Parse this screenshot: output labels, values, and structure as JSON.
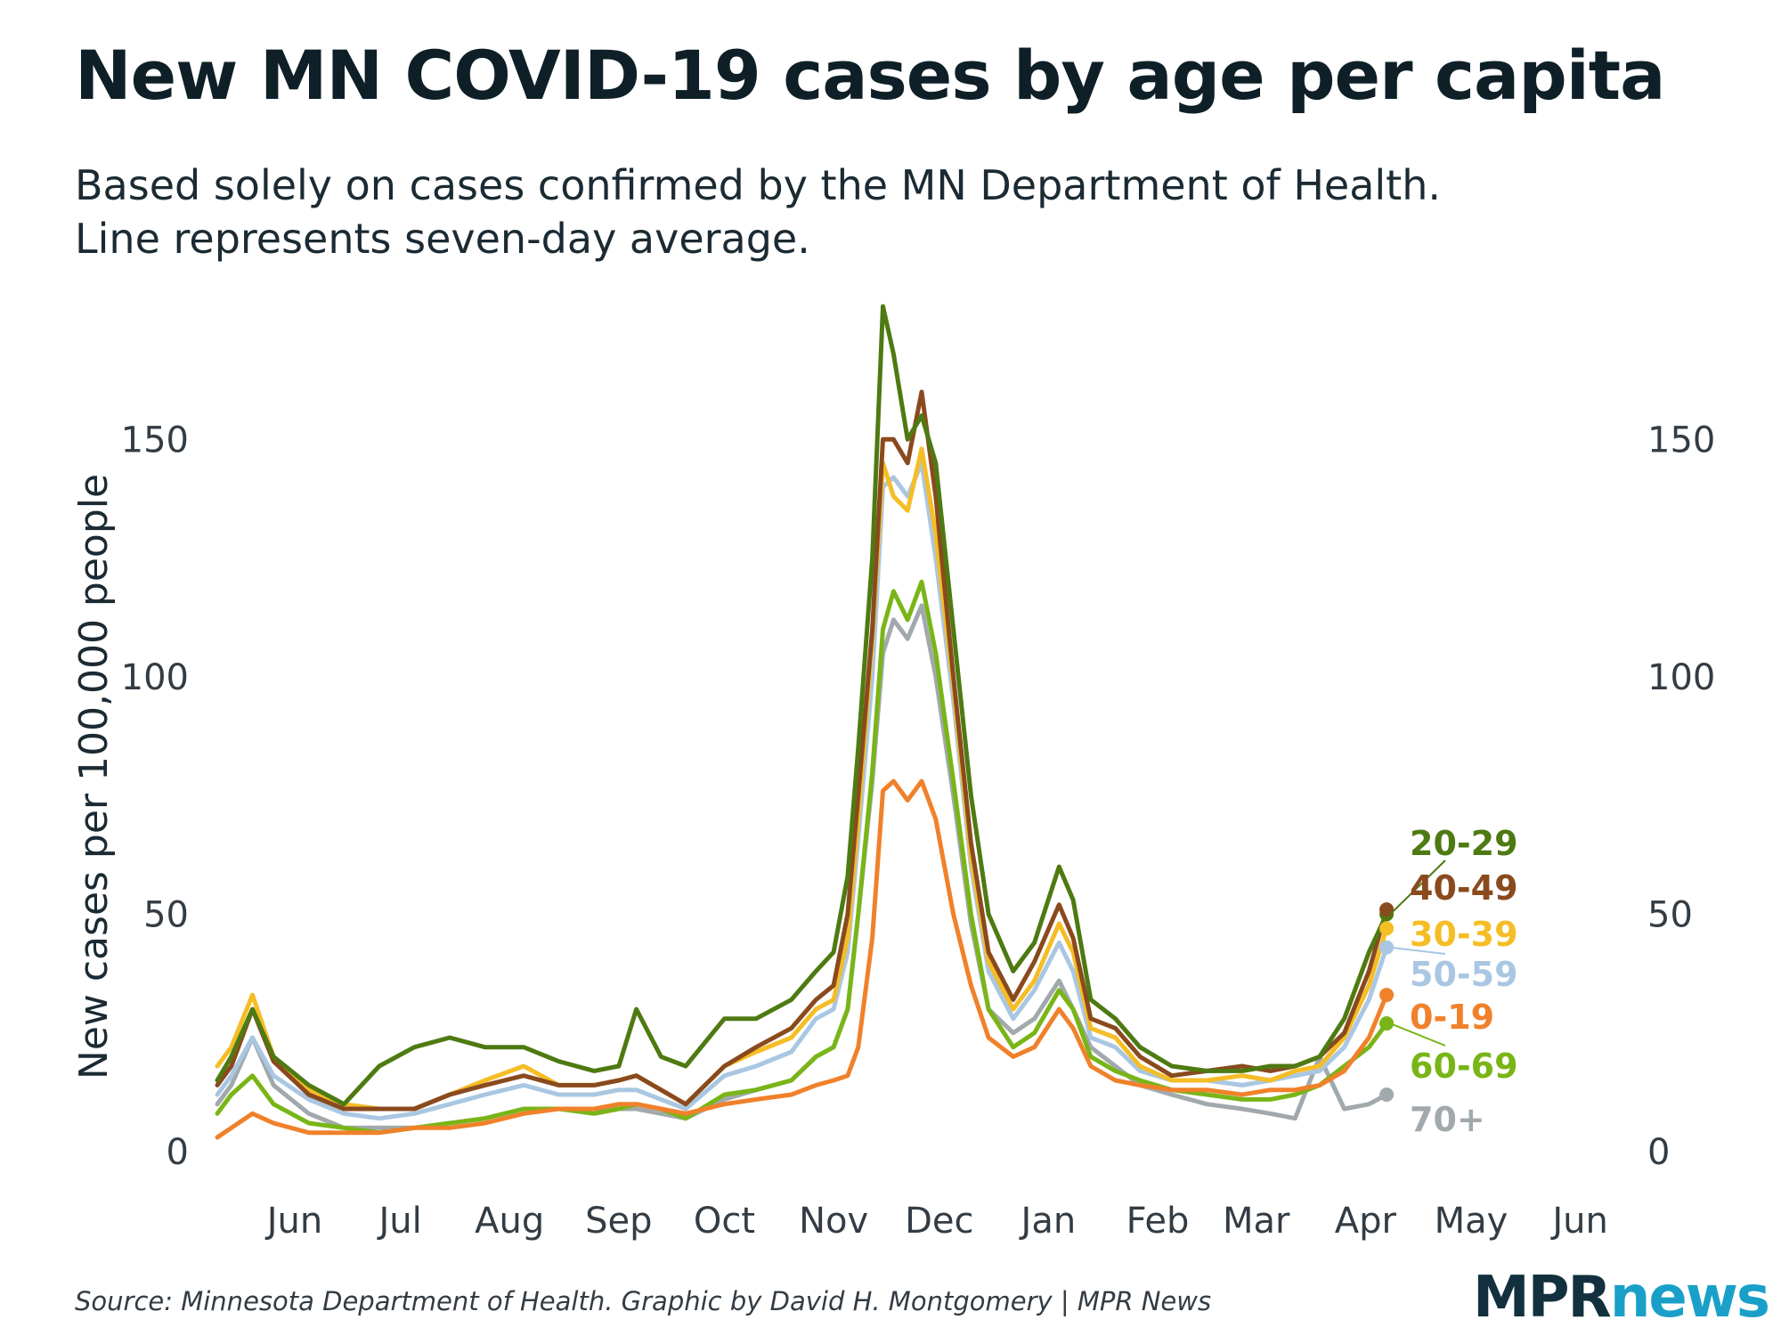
{
  "title": "New MN COVID-19 cases by age per capita",
  "subtitle": {
    "line1": "Based solely on cases confirmed by the MN Department of Health.",
    "line2": "Line represents seven-day average."
  },
  "source": "Source: Minnesota Department of Health. Graphic by David H. Montgomery | MPR News",
  "logo": {
    "part1": "MPR",
    "part2": "news"
  },
  "chart_data": {
    "type": "line",
    "ylabel": "New cases per 100,000 people",
    "ylim": [
      0,
      175
    ],
    "yticks": [
      0,
      50,
      100,
      150
    ],
    "xlim": [
      "2020-05-09",
      "2021-06-15"
    ],
    "xticks": [
      {
        "label": "Jun",
        "date": "2020-06-01"
      },
      {
        "label": "Jul",
        "date": "2020-07-01"
      },
      {
        "label": "Aug",
        "date": "2020-08-01"
      },
      {
        "label": "Sep",
        "date": "2020-09-01"
      },
      {
        "label": "Oct",
        "date": "2020-10-01"
      },
      {
        "label": "Nov",
        "date": "2020-11-01"
      },
      {
        "label": "Dec",
        "date": "2020-12-01"
      },
      {
        "label": "Jan",
        "date": "2021-01-01"
      },
      {
        "label": "Feb",
        "date": "2021-02-01"
      },
      {
        "label": "Mar",
        "date": "2021-03-01"
      },
      {
        "label": "Apr",
        "date": "2021-04-01"
      },
      {
        "label": "May",
        "date": "2021-05-01"
      },
      {
        "label": "Jun",
        "date": "2021-06-01"
      }
    ],
    "x": [
      "2020-05-10",
      "2020-05-14",
      "2020-05-20",
      "2020-05-26",
      "2020-06-05",
      "2020-06-15",
      "2020-06-25",
      "2020-07-05",
      "2020-07-15",
      "2020-07-25",
      "2020-08-05",
      "2020-08-15",
      "2020-08-25",
      "2020-09-01",
      "2020-09-06",
      "2020-09-13",
      "2020-09-20",
      "2020-10-01",
      "2020-10-10",
      "2020-10-20",
      "2020-10-27",
      "2020-11-01",
      "2020-11-05",
      "2020-11-08",
      "2020-11-12",
      "2020-11-15",
      "2020-11-18",
      "2020-11-22",
      "2020-11-26",
      "2020-11-30",
      "2020-12-05",
      "2020-12-10",
      "2020-12-15",
      "2020-12-22",
      "2020-12-28",
      "2021-01-04",
      "2021-01-08",
      "2021-01-13",
      "2021-01-20",
      "2021-01-27",
      "2021-02-05",
      "2021-02-15",
      "2021-02-25",
      "2021-03-05",
      "2021-03-12",
      "2021-03-19",
      "2021-03-26",
      "2021-04-02",
      "2021-04-07"
    ],
    "series": [
      {
        "name": "20-29",
        "color": "#4e7a12",
        "values": [
          15,
          20,
          30,
          20,
          14,
          10,
          18,
          22,
          24,
          22,
          22,
          19,
          17,
          18,
          30,
          20,
          18,
          28,
          28,
          32,
          38,
          42,
          58,
          85,
          125,
          178,
          168,
          150,
          155,
          145,
          110,
          75,
          50,
          38,
          44,
          60,
          53,
          32,
          28,
          22,
          18,
          17,
          17,
          18,
          18,
          20,
          28,
          42,
          50
        ]
      },
      {
        "name": "40-49",
        "color": "#8a4a1e",
        "values": [
          14,
          18,
          30,
          19,
          12,
          9,
          9,
          9,
          12,
          14,
          16,
          14,
          14,
          15,
          16,
          13,
          10,
          18,
          22,
          26,
          32,
          35,
          50,
          75,
          110,
          150,
          150,
          145,
          160,
          138,
          100,
          65,
          42,
          32,
          40,
          52,
          45,
          28,
          26,
          20,
          16,
          17,
          18,
          17,
          18,
          20,
          25,
          38,
          51
        ]
      },
      {
        "name": "30-39",
        "color": "#f5bd26",
        "values": [
          18,
          22,
          33,
          20,
          13,
          10,
          9,
          9,
          12,
          15,
          18,
          14,
          14,
          15,
          16,
          13,
          10,
          18,
          21,
          24,
          30,
          32,
          45,
          70,
          108,
          145,
          138,
          135,
          148,
          130,
          98,
          62,
          40,
          30,
          36,
          48,
          42,
          26,
          24,
          18,
          15,
          15,
          16,
          15,
          17,
          18,
          24,
          35,
          47
        ]
      },
      {
        "name": "50-59",
        "color": "#a9c7e2",
        "values": [
          12,
          16,
          24,
          16,
          11,
          8,
          7,
          8,
          10,
          12,
          14,
          12,
          12,
          13,
          13,
          11,
          9,
          16,
          18,
          21,
          28,
          30,
          42,
          66,
          100,
          140,
          142,
          138,
          145,
          125,
          95,
          60,
          38,
          28,
          34,
          44,
          38,
          24,
          22,
          17,
          15,
          15,
          14,
          15,
          16,
          17,
          22,
          32,
          43
        ]
      },
      {
        "name": "0-19",
        "color": "#f0812a",
        "values": [
          3,
          5,
          8,
          6,
          4,
          4,
          4,
          5,
          5,
          6,
          8,
          9,
          9,
          10,
          10,
          9,
          8,
          10,
          11,
          12,
          14,
          15,
          16,
          22,
          45,
          76,
          78,
          74,
          78,
          70,
          50,
          35,
          24,
          20,
          22,
          30,
          26,
          18,
          15,
          14,
          13,
          13,
          12,
          13,
          13,
          14,
          17,
          24,
          33
        ]
      },
      {
        "name": "60-69",
        "color": "#79b517",
        "values": [
          8,
          12,
          16,
          10,
          6,
          5,
          4,
          5,
          6,
          7,
          9,
          9,
          8,
          9,
          10,
          9,
          7,
          12,
          13,
          15,
          20,
          22,
          30,
          50,
          80,
          110,
          118,
          112,
          120,
          105,
          78,
          50,
          30,
          22,
          25,
          34,
          30,
          20,
          17,
          15,
          13,
          12,
          11,
          11,
          12,
          14,
          18,
          22,
          27
        ]
      },
      {
        "name": "70+",
        "color": "#a1a9ad",
        "values": [
          10,
          14,
          24,
          14,
          8,
          5,
          5,
          5,
          6,
          7,
          9,
          9,
          9,
          9,
          9,
          8,
          7,
          11,
          13,
          15,
          20,
          22,
          30,
          50,
          78,
          105,
          112,
          108,
          115,
          100,
          75,
          48,
          30,
          25,
          28,
          36,
          30,
          22,
          18,
          14,
          12,
          10,
          9,
          8,
          7,
          20,
          9,
          10,
          12
        ]
      }
    ]
  }
}
